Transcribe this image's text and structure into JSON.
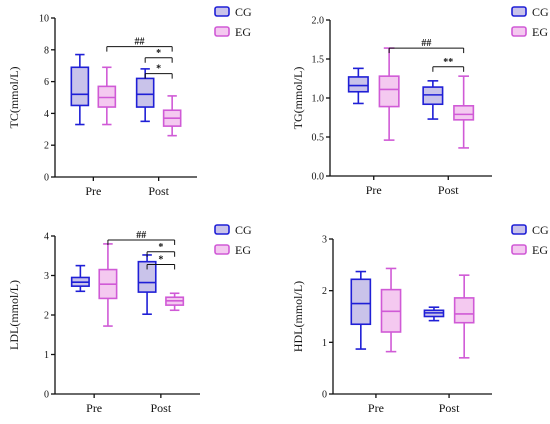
{
  "colors": {
    "CG_stroke": "#1f1fd6",
    "CG_fill": "#c9c3ea",
    "EG_stroke": "#d05ad6",
    "EG_fill": "#f4c9f0",
    "axis": "#111111"
  },
  "chart_data": [
    {
      "type": "box",
      "ylabel": "TC(mmol/L)",
      "ylim": [
        0,
        10
      ],
      "yticks": [
        "0",
        "2",
        "4",
        "6",
        "8",
        "10"
      ],
      "categories": [
        "Pre",
        "Post"
      ],
      "legend": [
        "CG",
        "EG"
      ],
      "legend_position": "top-right",
      "series": [
        {
          "name": "CG",
          "boxes": [
            {
              "category": "Pre",
              "min": 3.3,
              "q1": 4.5,
              "median": 5.2,
              "q3": 6.9,
              "max": 7.7
            },
            {
              "category": "Post",
              "min": 3.5,
              "q1": 4.4,
              "median": 5.2,
              "q3": 6.2,
              "max": 6.8
            }
          ]
        },
        {
          "name": "EG",
          "boxes": [
            {
              "category": "Pre",
              "min": 3.3,
              "q1": 4.4,
              "median": 5.0,
              "q3": 5.7,
              "max": 6.9
            },
            {
              "category": "Post",
              "min": 2.6,
              "q1": 3.2,
              "median": 3.7,
              "q3": 4.2,
              "max": 5.1
            }
          ]
        }
      ],
      "annotations": [
        {
          "label": "##",
          "from": "Pre-EG",
          "to": "Post-EG",
          "y": 8.2
        },
        {
          "label": "*",
          "from": "Post-CG",
          "to": "Post-EG",
          "y": 7.5
        },
        {
          "label": "*",
          "from": "Post-CG",
          "to": "Post-EG",
          "y": 6.5
        }
      ]
    },
    {
      "type": "box",
      "ylabel": "TG(mmol/L)",
      "ylim": [
        0,
        2
      ],
      "yticks": [
        "0.0",
        "0.5",
        "1.0",
        "1.5",
        "2.0"
      ],
      "categories": [
        "Pre",
        "Post"
      ],
      "legend": [
        "CG",
        "EG"
      ],
      "legend_position": "top-right",
      "series": [
        {
          "name": "CG",
          "boxes": [
            {
              "category": "Pre",
              "min": 0.93,
              "q1": 1.08,
              "median": 1.16,
              "q3": 1.27,
              "max": 1.38
            },
            {
              "category": "Post",
              "min": 0.73,
              "q1": 0.92,
              "median": 1.04,
              "q3": 1.14,
              "max": 1.22
            }
          ]
        },
        {
          "name": "EG",
          "boxes": [
            {
              "category": "Pre",
              "min": 0.46,
              "q1": 0.89,
              "median": 1.11,
              "q3": 1.28,
              "max": 1.64
            },
            {
              "category": "Post",
              "min": 0.36,
              "q1": 0.72,
              "median": 0.79,
              "q3": 0.9,
              "max": 1.28
            }
          ]
        }
      ],
      "annotations": [
        {
          "label": "##",
          "from": "Pre-EG",
          "to": "Post-EG",
          "y": 1.64
        },
        {
          "label": "**",
          "from": "Post-CG",
          "to": "Post-EG",
          "y": 1.4
        }
      ]
    },
    {
      "type": "box",
      "ylabel": "LDL(mmol/L)",
      "ylim": [
        0,
        4
      ],
      "yticks": [
        "0",
        "1",
        "2",
        "3",
        "4"
      ],
      "categories": [
        "Pre",
        "Post"
      ],
      "legend": [
        "CG",
        "EG"
      ],
      "legend_position": "top-right",
      "series": [
        {
          "name": "CG",
          "boxes": [
            {
              "category": "Pre",
              "min": 2.6,
              "q1": 2.73,
              "median": 2.83,
              "q3": 2.95,
              "max": 3.25
            },
            {
              "category": "Post",
              "min": 2.02,
              "q1": 2.58,
              "median": 2.82,
              "q3": 3.35,
              "max": 3.52
            }
          ]
        },
        {
          "name": "EG",
          "boxes": [
            {
              "category": "Pre",
              "min": 1.72,
              "q1": 2.42,
              "median": 2.78,
              "q3": 3.15,
              "max": 3.8
            },
            {
              "category": "Post",
              "min": 2.12,
              "q1": 2.25,
              "median": 2.36,
              "q3": 2.45,
              "max": 2.55
            }
          ]
        }
      ],
      "annotations": [
        {
          "label": "##",
          "from": "Pre-EG",
          "to": "Post-EG",
          "y": 3.9
        },
        {
          "label": "*",
          "from": "Post-CG",
          "to": "Post-EG",
          "y": 3.6
        },
        {
          "label": "*",
          "from": "Post-CG",
          "to": "Post-EG",
          "y": 3.28
        }
      ]
    },
    {
      "type": "box",
      "ylabel": "HDL(mmol/L)",
      "ylim": [
        0,
        3
      ],
      "yticks": [
        "0",
        "1",
        "2",
        "3"
      ],
      "categories": [
        "Pre",
        "Post"
      ],
      "legend": [
        "CG",
        "EG"
      ],
      "legend_position": "top-right",
      "series": [
        {
          "name": "CG",
          "boxes": [
            {
              "category": "Pre",
              "min": 0.87,
              "q1": 1.35,
              "median": 1.75,
              "q3": 2.22,
              "max": 2.37
            },
            {
              "category": "Post",
              "min": 1.42,
              "q1": 1.5,
              "median": 1.57,
              "q3": 1.62,
              "max": 1.68
            }
          ]
        },
        {
          "name": "EG",
          "boxes": [
            {
              "category": "Pre",
              "min": 0.82,
              "q1": 1.2,
              "median": 1.6,
              "q3": 2.02,
              "max": 2.43
            },
            {
              "category": "Post",
              "min": 0.7,
              "q1": 1.38,
              "median": 1.55,
              "q3": 1.86,
              "max": 2.3
            }
          ]
        }
      ],
      "annotations": []
    }
  ]
}
